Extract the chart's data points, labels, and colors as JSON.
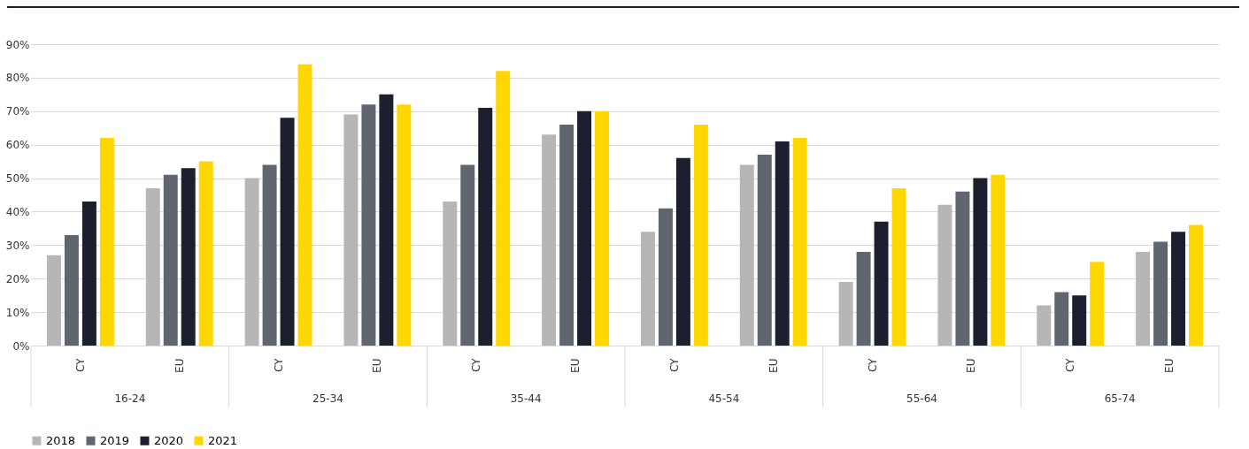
{
  "chart_data": {
    "type": "bar",
    "categories": [
      "CY",
      "EU",
      "CY",
      "EU",
      "CY",
      "EU",
      "CY",
      "EU",
      "CY",
      "EU",
      "CY",
      "EU"
    ],
    "series": [
      {
        "name": "2018",
        "color": "#b4b6b8",
        "values": [
          27,
          47,
          50,
          69,
          43,
          63,
          34,
          54,
          19,
          42,
          12,
          28
        ]
      },
      {
        "name": "2019",
        "color": "#5f6670",
        "values": [
          33,
          51,
          54,
          72,
          54,
          66,
          41,
          57,
          28,
          46,
          16,
          31
        ]
      },
      {
        "name": "2020",
        "color": "#1b1f2e",
        "values": [
          43,
          53,
          68,
          75,
          71,
          70,
          56,
          61,
          37,
          50,
          15,
          34
        ]
      },
      {
        "name": "2021",
        "color": "#ffd700",
        "values": [
          62,
          55,
          84,
          72,
          82,
          70,
          66,
          62,
          47,
          51,
          25,
          36
        ]
      }
    ],
    "annotations": [
      "16-24",
      "25-34",
      "35-44",
      "45-54",
      "55-64",
      "65-74"
    ],
    "ylim": [
      0,
      90
    ],
    "yticks": [
      {
        "value": 0,
        "label": "0%"
      },
      {
        "value": 10,
        "label": "10%"
      },
      {
        "value": 20,
        "label": "20%"
      },
      {
        "value": 30,
        "label": "30%"
      },
      {
        "value": 40,
        "label": "40%"
      },
      {
        "value": 50,
        "label": "50%"
      },
      {
        "value": 60,
        "label": "60%"
      },
      {
        "value": 70,
        "label": "70%"
      },
      {
        "value": 80,
        "label": "80%"
      },
      {
        "value": 90,
        "label": "90%"
      }
    ],
    "grid": "y",
    "legend": "bottom"
  }
}
